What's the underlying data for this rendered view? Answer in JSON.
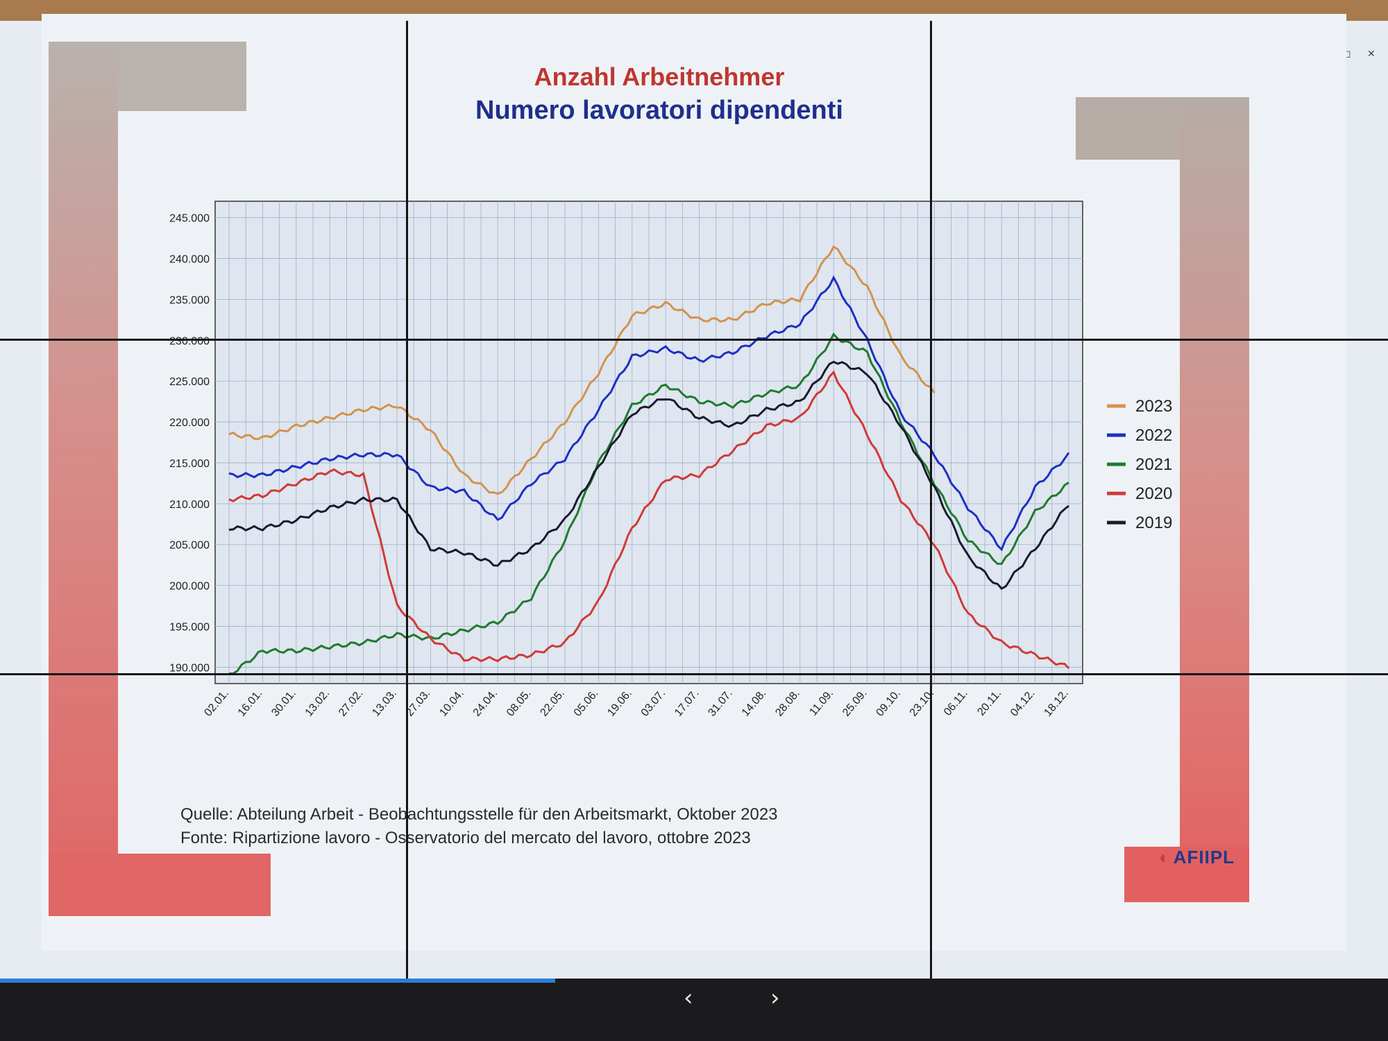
{
  "slide": {
    "title_de": "Anzahl Arbeitnehmer",
    "title_it": "Numero lavoratori dipendenti",
    "source_de": "Quelle: Abteilung Arbeit - Beobachtungsstelle für den Arbeitsmarkt, Oktober 2023",
    "source_it": "Fonte: Ripartizione lavoro - Osservatorio del mercato del lavoro, ottobre 2023",
    "logo": "AFIIPL",
    "nav_prev": "‹",
    "nav_next": "›",
    "progress": 0.4
  },
  "colors": {
    "2023": "#d4924a",
    "2022": "#1e2fc4",
    "2021": "#1f7a2e",
    "2020": "#d03a35",
    "2019": "#1a1a2e"
  },
  "chart_data": {
    "type": "line",
    "title": "Anzahl Arbeitnehmer / Numero lavoratori dipendenti",
    "xlabel": "",
    "ylabel": "",
    "x": [
      "02.01.",
      "16.01.",
      "30.01.",
      "13.02.",
      "27.02.",
      "13.03.",
      "27.03.",
      "10.04.",
      "24.04.",
      "08.05.",
      "22.05.",
      "05.06.",
      "19.06.",
      "03.07.",
      "17.07.",
      "31.07.",
      "14.08.",
      "28.08.",
      "11.09.",
      "25.09.",
      "09.10.",
      "23.10.",
      "06.11.",
      "20.11.",
      "04.12.",
      "18.12."
    ],
    "yticks": [
      "190.000",
      "195.000",
      "200.000",
      "205.000",
      "210.000",
      "215.000",
      "220.000",
      "225.000",
      "230.000",
      "235.000",
      "240.000",
      "245.000"
    ],
    "ylim": [
      188000,
      247000
    ],
    "grid": true,
    "legend": "right",
    "series": [
      {
        "name": "2023",
        "values": [
          218500,
          218000,
          219500,
          220500,
          221500,
          222000,
          219000,
          213500,
          211000,
          215500,
          220000,
          226000,
          233000,
          234500,
          232500,
          232500,
          234500,
          235000,
          241500,
          236500,
          228000,
          223500,
          null,
          null,
          null,
          null
        ]
      },
      {
        "name": "2022",
        "values": [
          213500,
          213500,
          214500,
          215500,
          216000,
          216000,
          212000,
          211500,
          208000,
          212500,
          215500,
          221500,
          228000,
          229000,
          227500,
          228500,
          230500,
          232000,
          237500,
          230000,
          221000,
          216000,
          209500,
          204500,
          212000,
          216000
        ]
      },
      {
        "name": "2021",
        "values": [
          189000,
          192000,
          192000,
          192500,
          193000,
          194000,
          193500,
          194500,
          195500,
          198500,
          205500,
          215000,
          222000,
          224500,
          222500,
          222000,
          223500,
          224500,
          230500,
          228500,
          220000,
          212500,
          205500,
          202500,
          209000,
          212500
        ]
      },
      {
        "name": "2020",
        "values": [
          210500,
          211000,
          212500,
          214000,
          213500,
          197500,
          193500,
          191000,
          191000,
          191500,
          193000,
          198000,
          207000,
          213000,
          213500,
          216500,
          219500,
          220500,
          226000,
          218500,
          210500,
          205000,
          196500,
          193000,
          191500,
          190000
        ]
      },
      {
        "name": "2019",
        "values": [
          207000,
          207000,
          208000,
          209500,
          210500,
          210500,
          204500,
          204000,
          202500,
          204500,
          208000,
          214500,
          221000,
          223000,
          220500,
          219500,
          221500,
          222500,
          227500,
          226000,
          219500,
          212000,
          203500,
          199500,
          204500,
          210000
        ]
      }
    ]
  }
}
